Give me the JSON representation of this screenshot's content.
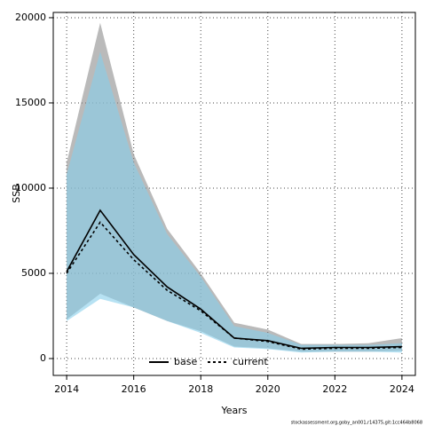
{
  "chart_data": {
    "type": "band-line",
    "x_label": "Years",
    "y_label": "SSB",
    "footer": "stockassessment.org,goby_an001,r14375,git:1cc464b8068",
    "x": [
      2014,
      2015,
      2016,
      2017,
      2018,
      2019,
      2020,
      2021,
      2022,
      2023,
      2024
    ],
    "series": [
      {
        "name": "base",
        "color": "#000000",
        "band_color": "#8c8c8c",
        "dash": "solid",
        "values": [
          5100,
          8700,
          6100,
          4200,
          2900,
          1200,
          1050,
          600,
          650,
          650,
          700
        ],
        "upper": [
          11500,
          19700,
          12000,
          7600,
          5000,
          2100,
          1700,
          850,
          850,
          900,
          1200
        ],
        "lower": [
          2300,
          3800,
          3000,
          2200,
          1600,
          700,
          600,
          400,
          400,
          400,
          450
        ]
      },
      {
        "name": "current",
        "color": "#000000",
        "band_color": "#87ceeb",
        "dash": "dashed",
        "values": [
          5000,
          8000,
          5800,
          4000,
          2800,
          1200,
          1000,
          550,
          600,
          600,
          650
        ],
        "upper": [
          10800,
          18000,
          11500,
          7300,
          4800,
          1900,
          1500,
          800,
          800,
          800,
          900
        ],
        "lower": [
          2200,
          3500,
          3000,
          2200,
          1500,
          650,
          550,
          350,
          400,
          400,
          350
        ]
      }
    ],
    "xlim": [
      2013.6,
      2024.4
    ],
    "ylim": [
      -990,
      20310
    ],
    "xticks": [
      2014,
      2016,
      2018,
      2020,
      2022,
      2024
    ],
    "yticks": [
      0,
      5000,
      10000,
      15000,
      20000
    ],
    "grid": true,
    "legend": "bottom"
  }
}
